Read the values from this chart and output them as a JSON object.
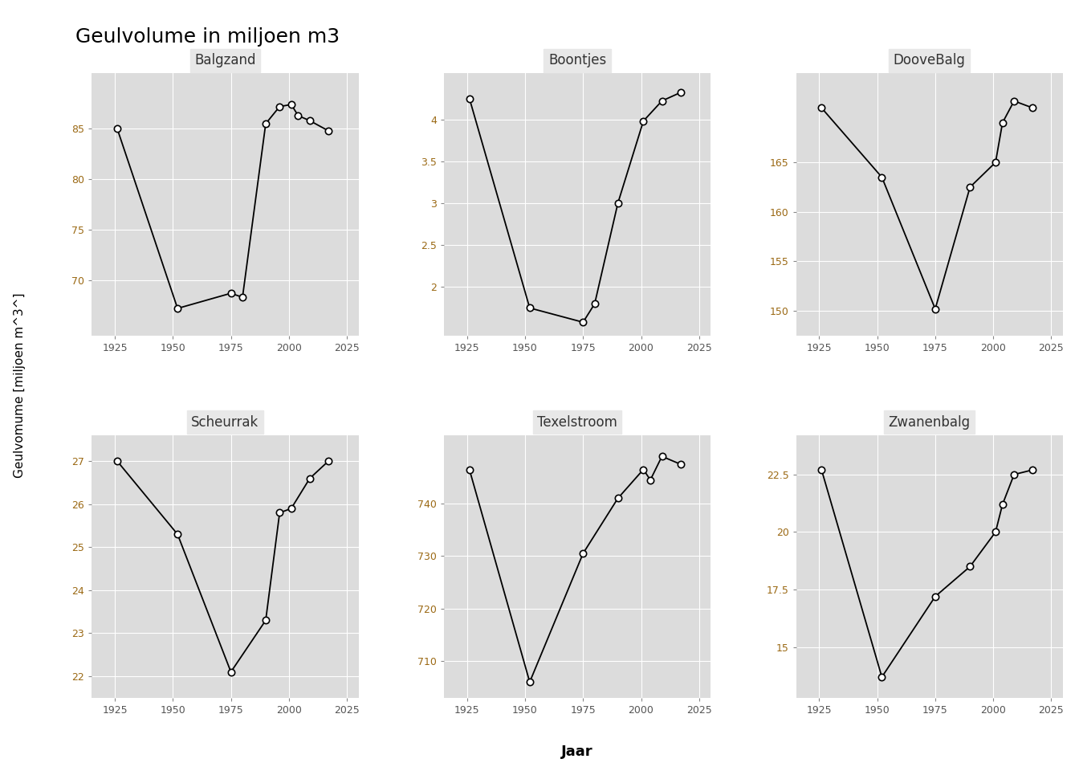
{
  "title": "Geulvolume in miljoen m3",
  "ylabel": "Geulvomume [miljoen m^3^]",
  "xlabel": "Jaar",
  "plot_bg_color": "#DCDCDC",
  "title_strip_color": "#E8E8E8",
  "fig_bg_color": "#FFFFFF",
  "ytick_color": "#9B6914",
  "xtick_color": "#555555",
  "grid_color": "#FFFFFF",
  "subplots": [
    {
      "title": "Balgzand",
      "years": [
        1926,
        1952,
        1975,
        1980,
        1990,
        1996,
        2001,
        2004,
        2009,
        2017
      ],
      "values": [
        85.0,
        67.2,
        68.7,
        68.3,
        85.5,
        87.2,
        87.4,
        86.3,
        85.8,
        84.8
      ],
      "yticks": [
        70,
        75,
        80,
        85
      ],
      "ylim": [
        64.5,
        90.5
      ]
    },
    {
      "title": "Boontjes",
      "years": [
        1926,
        1952,
        1975,
        1980,
        1990,
        2001,
        2009,
        2017
      ],
      "values": [
        4.25,
        1.75,
        1.58,
        1.8,
        3.0,
        3.98,
        4.22,
        4.32
      ],
      "yticks": [
        2.0,
        2.5,
        3.0,
        3.5,
        4.0
      ],
      "ylim": [
        1.42,
        4.55
      ]
    },
    {
      "title": "DooveBalg",
      "years": [
        1926,
        1952,
        1975,
        1990,
        2001,
        2004,
        2009,
        2017
      ],
      "values": [
        170.5,
        163.5,
        150.2,
        162.5,
        165.0,
        169.0,
        171.2,
        170.5
      ],
      "yticks": [
        150,
        155,
        160,
        165
      ],
      "ylim": [
        147.5,
        174.0
      ]
    },
    {
      "title": "Scheurrak",
      "years": [
        1926,
        1952,
        1975,
        1990,
        1996,
        2001,
        2009,
        2017
      ],
      "values": [
        27.0,
        25.3,
        22.1,
        23.3,
        25.8,
        25.9,
        26.6,
        27.0
      ],
      "yticks": [
        22,
        23,
        24,
        25,
        26,
        27
      ],
      "ylim": [
        21.5,
        27.6
      ]
    },
    {
      "title": "Texelstroom",
      "years": [
        1926,
        1952,
        1975,
        1990,
        2001,
        2004,
        2009,
        2017
      ],
      "values": [
        746.5,
        706.0,
        730.5,
        741.0,
        746.5,
        744.5,
        749.0,
        747.5
      ],
      "yticks": [
        710,
        720,
        730,
        740
      ],
      "ylim": [
        703.0,
        753.0
      ]
    },
    {
      "title": "Zwanenbalg",
      "years": [
        1926,
        1952,
        1975,
        1990,
        2001,
        2004,
        2009,
        2017
      ],
      "values": [
        22.7,
        13.7,
        17.2,
        18.5,
        20.0,
        21.2,
        22.5,
        22.7
      ],
      "yticks": [
        15.0,
        17.5,
        20.0,
        22.5
      ],
      "ylim": [
        12.8,
        24.2
      ]
    }
  ]
}
